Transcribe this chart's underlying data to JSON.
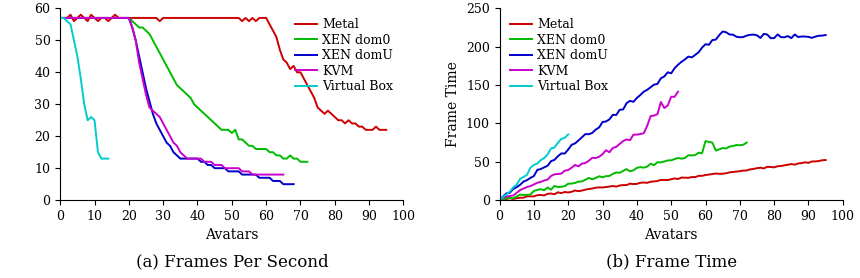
{
  "colors": {
    "Metal": "#cc0000",
    "XEN dom0": "#00bb00",
    "XEN domU": "#0000cc",
    "KVM": "#cc00cc",
    "Virtual Box": "#00cccc"
  },
  "legend_labels": [
    "Metal",
    "XEN dom0",
    "XEN domU",
    "KVM",
    "Virtual Box"
  ],
  "subplot_a_title": "(a) Frames Per Second",
  "subplot_b_title": "(b) Frame Time",
  "xlabel": "Avatars",
  "ylabel_b": "Frame Time",
  "xlim": [
    0,
    100
  ],
  "ylim_a": [
    0,
    60
  ],
  "ylim_b": [
    0,
    250
  ],
  "xticks": [
    0,
    10,
    20,
    30,
    40,
    50,
    60,
    70,
    80,
    90,
    100
  ],
  "yticks_a": [
    0,
    10,
    20,
    30,
    40,
    50,
    60
  ],
  "yticks_b": [
    0,
    50,
    100,
    150,
    200,
    250
  ],
  "font_family": "DejaVu Serif",
  "caption_fontsize": 12,
  "axis_label_fontsize": 10,
  "tick_fontsize": 9,
  "legend_fontsize": 9,
  "linewidth": 1.4
}
